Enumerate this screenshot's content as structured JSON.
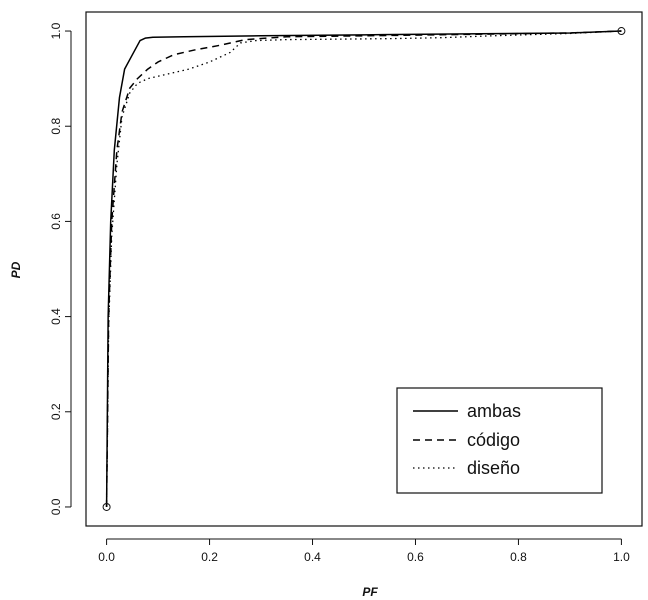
{
  "chart_data": {
    "type": "line",
    "title": "",
    "xlabel": "PF",
    "ylabel": "PD",
    "xlim": [
      -0.04,
      1.04
    ],
    "ylim": [
      -0.04,
      1.04
    ],
    "xticks": [
      0.0,
      0.2,
      0.4,
      0.6,
      0.8,
      1.0
    ],
    "xtick_labels": [
      "0.0",
      "0.2",
      "0.4",
      "0.6",
      "0.8",
      "1.0"
    ],
    "yticks": [
      0.0,
      0.2,
      0.4,
      0.6,
      0.8,
      1.0
    ],
    "ytick_labels": [
      "0.0",
      "0.2",
      "0.4",
      "0.6",
      "0.8",
      "1.0"
    ],
    "grid": false,
    "legend_position": "bottom-right",
    "series": [
      {
        "name": "ambas",
        "style": "solid",
        "color": "#000000",
        "x": [
          0.0,
          0.003,
          0.008,
          0.015,
          0.025,
          0.035,
          0.05,
          0.065,
          0.075,
          0.09,
          0.15,
          0.3,
          0.5,
          0.7,
          0.9,
          1.0
        ],
        "y": [
          0.0,
          0.4,
          0.6,
          0.75,
          0.86,
          0.92,
          0.95,
          0.98,
          0.985,
          0.987,
          0.988,
          0.99,
          0.992,
          0.994,
          0.996,
          1.0
        ]
      },
      {
        "name": "código",
        "style": "dashed",
        "color": "#000000",
        "x": [
          0.0,
          0.004,
          0.01,
          0.02,
          0.03,
          0.045,
          0.06,
          0.08,
          0.1,
          0.13,
          0.17,
          0.22,
          0.27,
          0.35,
          0.5,
          0.7,
          0.9,
          1.0
        ],
        "y": [
          0.0,
          0.4,
          0.6,
          0.75,
          0.83,
          0.88,
          0.9,
          0.92,
          0.935,
          0.95,
          0.96,
          0.97,
          0.982,
          0.988,
          0.99,
          0.993,
          0.996,
          1.0
        ]
      },
      {
        "name": "diseño",
        "style": "dotted",
        "color": "#000000",
        "x": [
          0.0,
          0.004,
          0.01,
          0.02,
          0.03,
          0.045,
          0.06,
          0.08,
          0.12,
          0.16,
          0.2,
          0.24,
          0.26,
          0.29,
          0.35,
          0.45,
          0.55,
          0.65,
          0.75,
          0.9,
          1.0
        ],
        "y": [
          0.0,
          0.38,
          0.57,
          0.72,
          0.82,
          0.87,
          0.89,
          0.9,
          0.91,
          0.92,
          0.935,
          0.955,
          0.975,
          0.98,
          0.982,
          0.983,
          0.984,
          0.986,
          0.99,
          0.995,
          1.0
        ]
      }
    ],
    "markers": [
      {
        "x": 0.0,
        "y": 0.0,
        "shape": "open-circle"
      },
      {
        "x": 1.0,
        "y": 1.0,
        "shape": "open-circle"
      }
    ]
  }
}
